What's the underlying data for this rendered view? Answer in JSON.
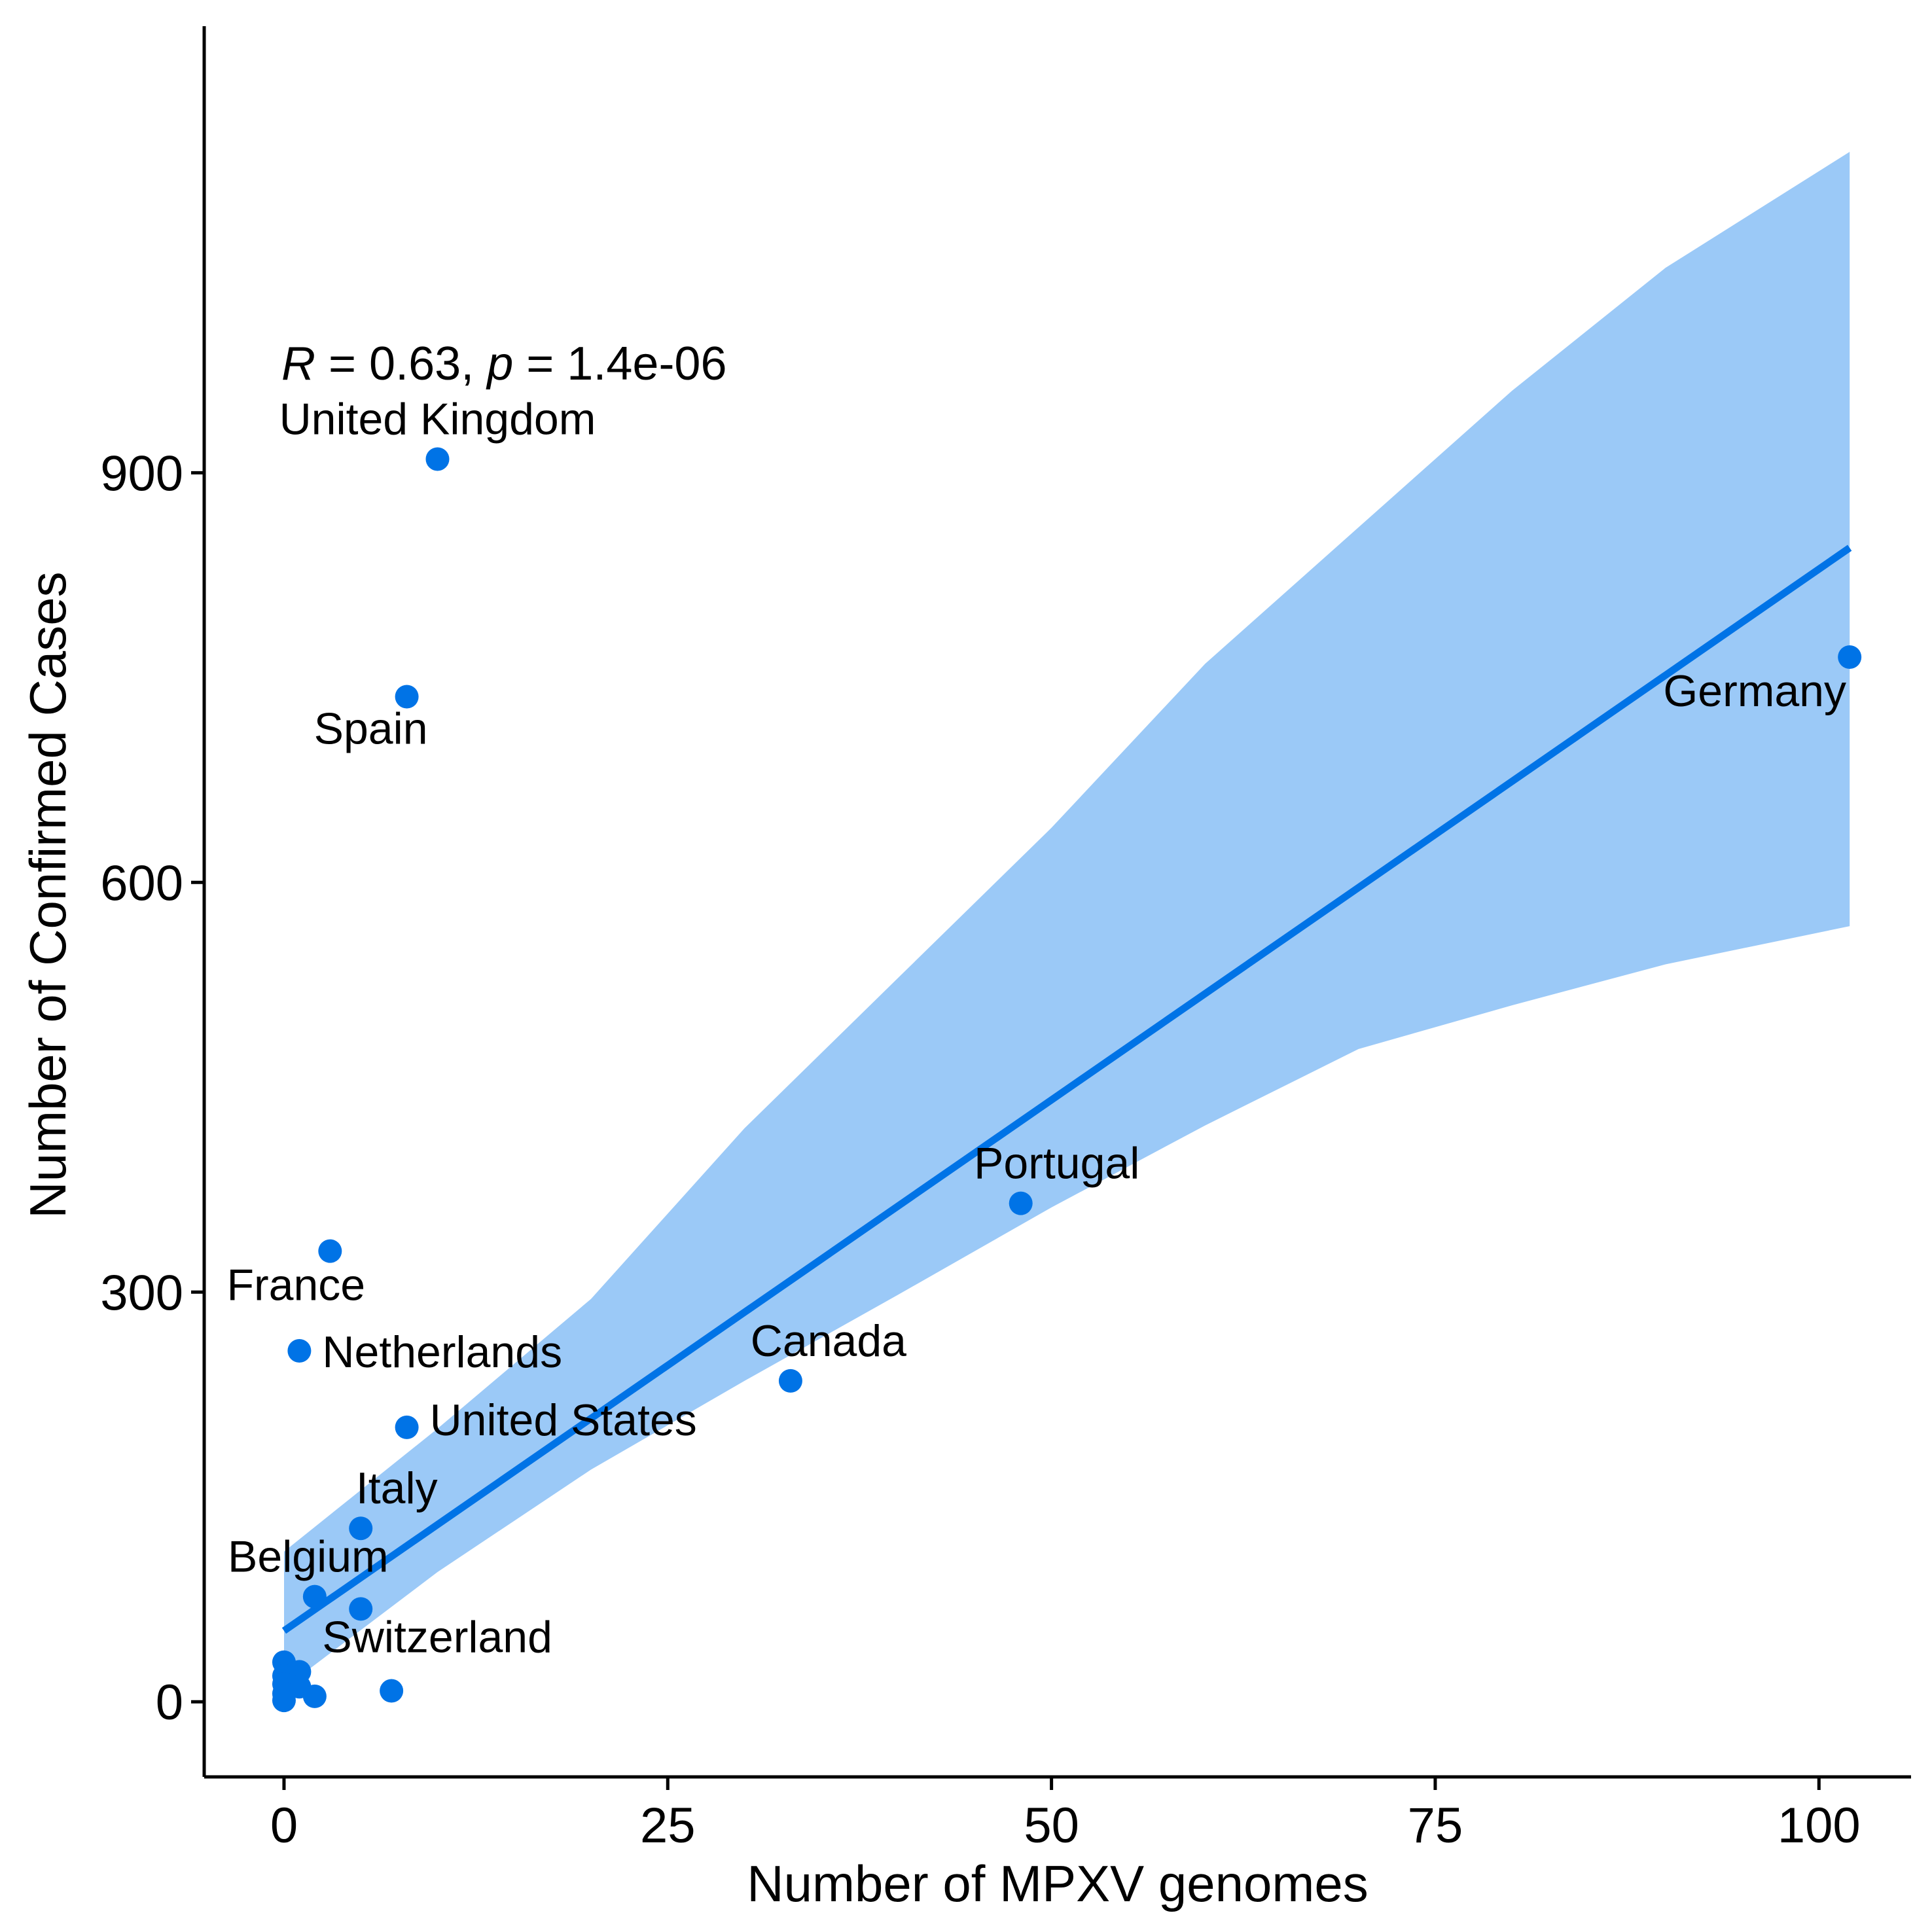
{
  "chart_data": {
    "type": "scatter",
    "title": "",
    "xlabel": "Number of MPXV genomes",
    "ylabel": "Number of Confirmed Cases",
    "xlim": [
      -5.2,
      106
    ],
    "ylim": [
      -55,
      1227
    ],
    "x_ticks": [
      0,
      25,
      50,
      75,
      100
    ],
    "x_tick_labels": [
      "0",
      "25",
      "50",
      "75",
      "100"
    ],
    "y_ticks": [
      0,
      300,
      600,
      900
    ],
    "y_tick_labels": [
      "0",
      "300",
      "600",
      "900"
    ],
    "grid": false,
    "legend": "none",
    "annotation": {
      "prefix_italic": "R",
      "middle": " = 0.63, ",
      "p_italic": "p",
      "suffix": " = 1.4e-06"
    },
    "points": [
      {
        "x": 10,
        "y": 910,
        "label": "United Kingdom"
      },
      {
        "x": 8,
        "y": 736,
        "label": "Spain"
      },
      {
        "x": 102,
        "y": 765,
        "label": "Germany"
      },
      {
        "x": 48,
        "y": 365,
        "label": "Portugal"
      },
      {
        "x": 3,
        "y": 330,
        "label": "France"
      },
      {
        "x": 1,
        "y": 257,
        "label": "Netherlands"
      },
      {
        "x": 33,
        "y": 235,
        "label": "Canada"
      },
      {
        "x": 8,
        "y": 201,
        "label": "United States"
      },
      {
        "x": 5,
        "y": 127,
        "label": "Italy"
      },
      {
        "x": 2,
        "y": 77,
        "label": "Belgium"
      },
      {
        "x": 5,
        "y": 68,
        "label": ""
      },
      {
        "x": 1,
        "y": 22,
        "label": "Switzerland"
      },
      {
        "x": 0,
        "y": 29,
        "label": ""
      },
      {
        "x": 0,
        "y": 19,
        "label": ""
      },
      {
        "x": 0,
        "y": 13,
        "label": ""
      },
      {
        "x": 1,
        "y": 11,
        "label": ""
      },
      {
        "x": 0,
        "y": 6,
        "label": ""
      },
      {
        "x": 2,
        "y": 4,
        "label": ""
      },
      {
        "x": 7,
        "y": 8,
        "label": ""
      },
      {
        "x": 0,
        "y": 1,
        "label": ""
      }
    ],
    "regression": {
      "x": [
        0,
        102
      ],
      "y": [
        52,
        845
      ]
    },
    "confidence_band": {
      "x": [
        0,
        10,
        20,
        30,
        40,
        50,
        60,
        70,
        80,
        90,
        102
      ],
      "lower": [
        10,
        95,
        170,
        235,
        298,
        362,
        422,
        478,
        510,
        540,
        568
      ],
      "upper": [
        110,
        200,
        295,
        420,
        530,
        640,
        760,
        860,
        960,
        1050,
        1135
      ]
    },
    "colors": {
      "points": "#0073e6",
      "line": "#0073e6",
      "band": "#9bc9f7",
      "axis": "#000000"
    }
  }
}
